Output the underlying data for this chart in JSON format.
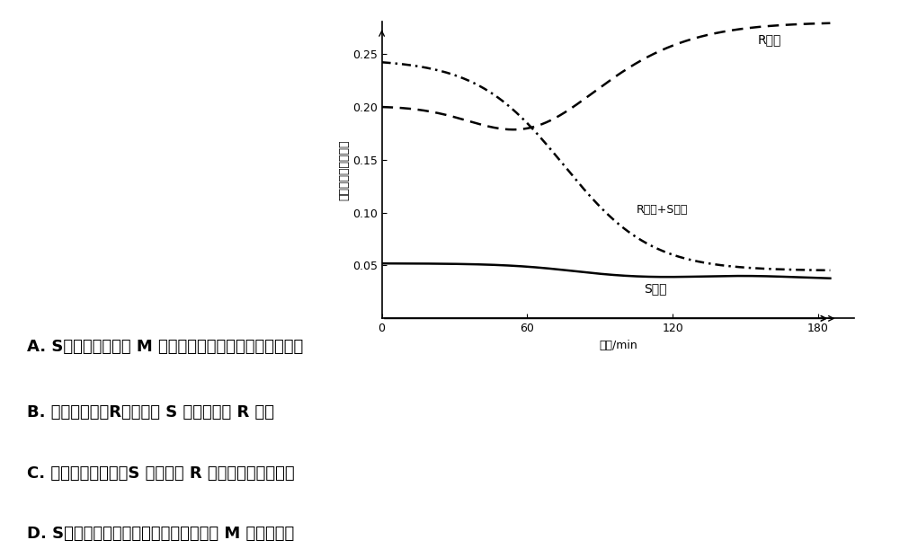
{
  "ylabel": "枯草杆菌的相对含量",
  "xlabel": "时间/min",
  "xticks": [
    0,
    60,
    120,
    180
  ],
  "yticks": [
    0.05,
    0.1,
    0.15,
    0.2,
    0.25
  ],
  "xlim": [
    0,
    195
  ],
  "ylim": [
    0,
    0.28
  ],
  "curve_R_label": "R型菌",
  "curve_RS_label": "R型菌+S型菌",
  "curve_S_label": "S型菌",
  "line_A": "A. S型菌能为噬菌体 M 的增殖提供模板、原料和相关的酶",
  "line_B": "B. 混合培养后，R型菌能使 S 型菌转化为 R 型菌",
  "line_C": "C. 混合培养过程中，S 型菌诱导 R 型菌发生了定向突变",
  "line_D": "D. S型枯草杆菌细胞膜上含有能被噬菌体 M 识别的受体",
  "background_color": "#ffffff",
  "text_color": "#000000"
}
